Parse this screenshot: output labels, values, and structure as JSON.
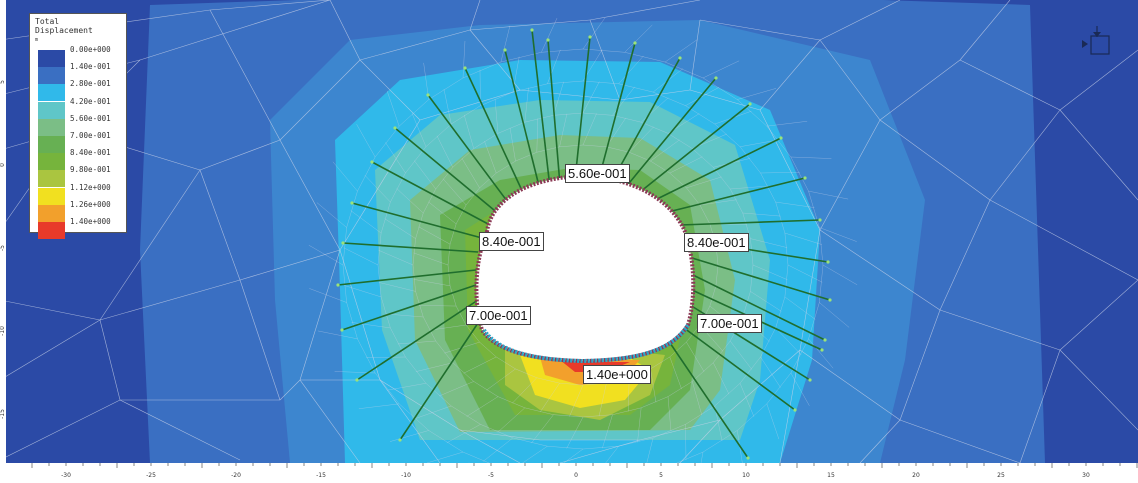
{
  "legend": {
    "title_line1": "Total",
    "title_line2": "Displacement",
    "subtitle": "m",
    "levels": [
      {
        "label": "0.00e+000",
        "color": "#2b4aa6"
      },
      {
        "label": "1.40e-001",
        "color": "#3a6fc2"
      },
      {
        "label": "2.80e-001",
        "color": "#30b9ea"
      },
      {
        "label": "4.20e-001",
        "color": "#5fc6c8"
      },
      {
        "label": "5.60e-001",
        "color": "#7bbe86"
      },
      {
        "label": "7.00e-001",
        "color": "#67b053"
      },
      {
        "label": "8.40e-001",
        "color": "#76b43c"
      },
      {
        "label": "9.80e-001",
        "color": "#aac540"
      },
      {
        "label": "1.12e+000",
        "color": "#f1e020"
      },
      {
        "label": "1.26e+000",
        "color": "#f2a02c"
      },
      {
        "label": "1.40e+000",
        "color": "#e83a2a"
      }
    ]
  },
  "contour_labels": [
    {
      "id": "top",
      "text": "5.60e-001"
    },
    {
      "id": "upper-left",
      "text": "8.40e-001"
    },
    {
      "id": "upper-right",
      "text": "8.40e-001"
    },
    {
      "id": "lower-left",
      "text": "7.00e-001"
    },
    {
      "id": "lower-right",
      "text": "7.00e-001"
    },
    {
      "id": "floor",
      "text": "1.40e+000"
    }
  ],
  "x_axis_ticks": [
    "-30",
    "-25",
    "-20",
    "-15",
    "-10",
    "-5",
    "0",
    "5",
    "10",
    "15",
    "20",
    "25",
    "30"
  ],
  "y_axis_ticks": [
    "5",
    "0",
    "-5",
    "-10",
    "-15"
  ],
  "colors": {
    "background": "#2b4aa6",
    "mesh": "#c9d3ea",
    "bolt": "#1f6e2d",
    "lining": "#8b3a55",
    "lining_floor": "#2aa6c9"
  }
}
